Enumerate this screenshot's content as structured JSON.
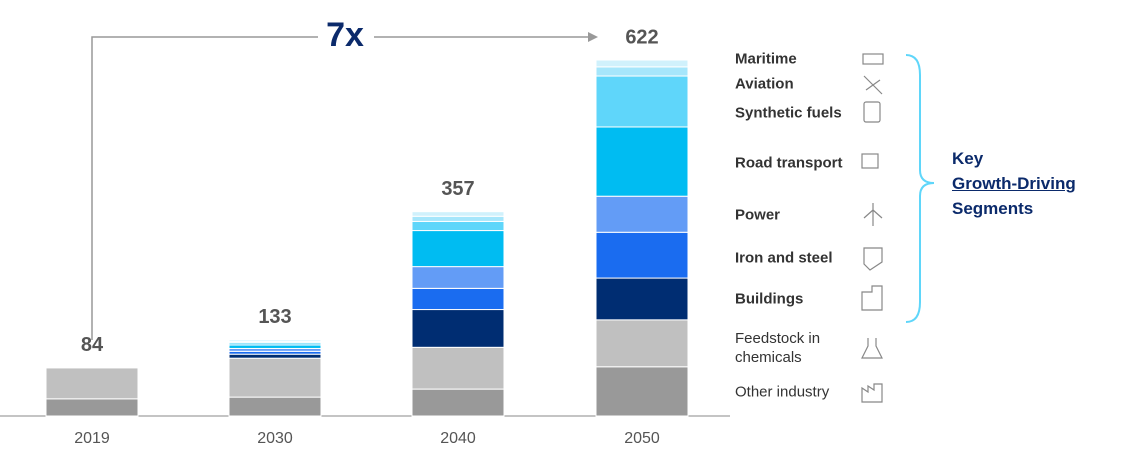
{
  "chart_data": {
    "type": "stacked_bar",
    "categories": [
      "2019",
      "2030",
      "2040",
      "2050"
    ],
    "totals": [
      84,
      133,
      357,
      622
    ],
    "series": [
      {
        "name": "Other industry",
        "color": "#999999",
        "bold": false,
        "values": [
          30,
          33,
          47,
          86
        ]
      },
      {
        "name": "Feedstock in chemicals",
        "color": "#c0c0c0",
        "bold": false,
        "values": [
          54,
          68,
          73,
          82
        ]
      },
      {
        "name": "Buildings",
        "color": "#002d72",
        "bold": true,
        "values": [
          0,
          7,
          66,
          73
        ]
      },
      {
        "name": "Iron and steel",
        "color": "#1a6cf0",
        "bold": true,
        "values": [
          0,
          5,
          37,
          80
        ]
      },
      {
        "name": "Power",
        "color": "#639cf6",
        "bold": true,
        "values": [
          0,
          5,
          38,
          63
        ]
      },
      {
        "name": "Road transport",
        "color": "#00bcf2",
        "bold": true,
        "values": [
          0,
          6,
          63,
          121
        ]
      },
      {
        "name": "Synthetic fuels",
        "color": "#5fd6fa",
        "bold": true,
        "values": [
          0,
          4,
          16,
          89
        ]
      },
      {
        "name": "Aviation",
        "color": "#a6e6fb",
        "bold": true,
        "values": [
          0,
          2,
          9,
          16
        ]
      },
      {
        "name": "Maritime",
        "color": "#d0f1fc",
        "bold": true,
        "values": [
          0,
          3,
          8,
          12
        ]
      }
    ],
    "annotation": "7x",
    "key_label": [
      "Key",
      "Growth-Driving",
      "Segments"
    ]
  }
}
